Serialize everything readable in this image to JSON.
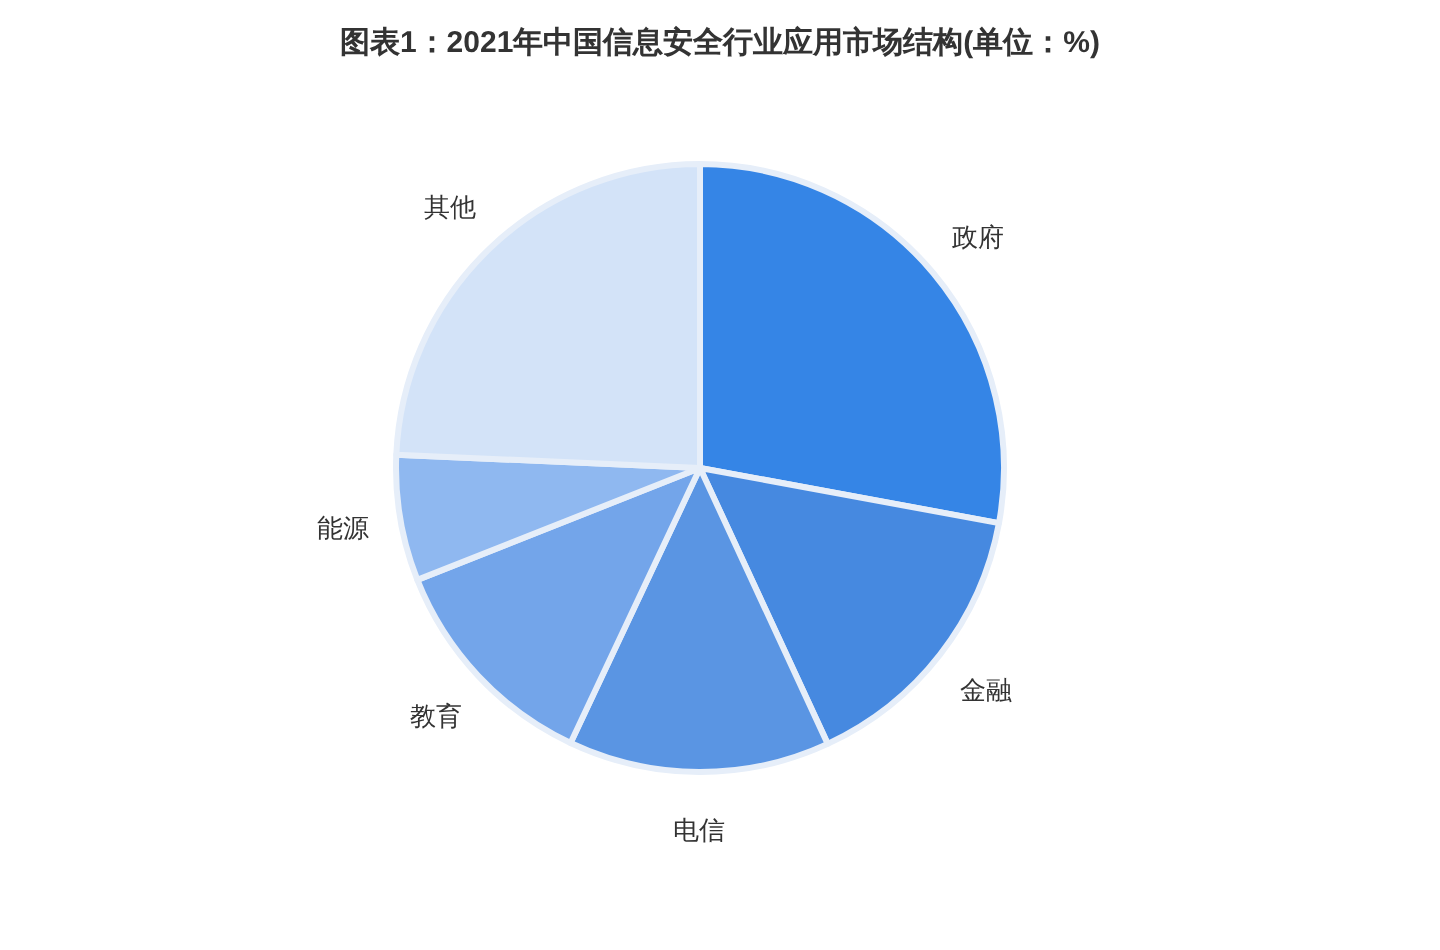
{
  "chart_data": {
    "type": "pie",
    "title": "图表1：2021年中国信息安全行业应用市场结构(单位：%)",
    "categories": [
      "政府",
      "金融",
      "电信",
      "教育",
      "能源",
      "其他"
    ],
    "values": [
      27.9,
      15.2,
      13.9,
      12.0,
      6.7,
      24.3
    ],
    "colors": [
      "#3585e6",
      "#4689e0",
      "#5a95e3",
      "#73a5ea",
      "#8fb8f0",
      "#d3e3f8"
    ]
  }
}
